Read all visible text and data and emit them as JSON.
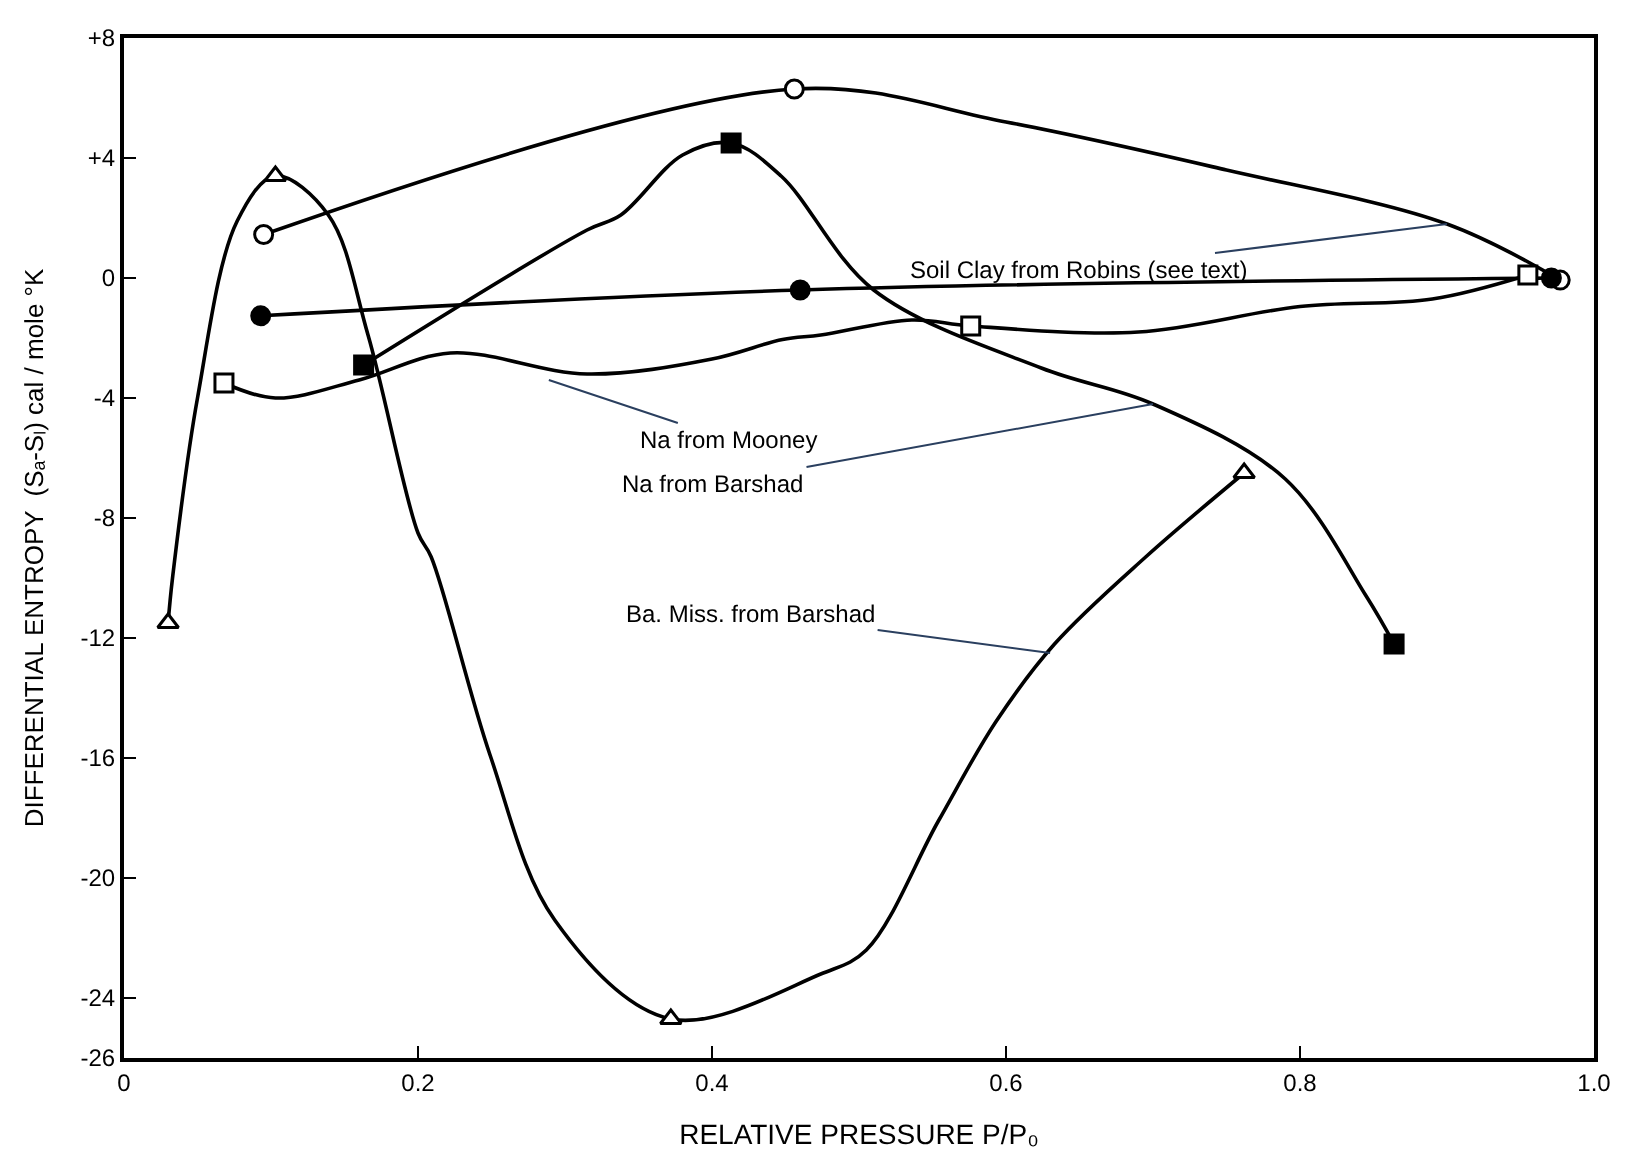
{
  "chart_data": {
    "type": "line",
    "xlabel": "RELATIVE PRESSURE P/P₀",
    "ylabel": "DIFFERENTIAL ENTROPY  (Sₐ-Sₗ) cal / mole °K",
    "xlim": [
      0,
      1.0
    ],
    "xticks": [
      0,
      0.2,
      0.4,
      0.6,
      0.8,
      {
        "value": 1.0,
        "label": "1.0"
      }
    ],
    "ylim": [
      -26,
      8
    ],
    "yticks": [
      {
        "value": 8,
        "label": "+8"
      },
      {
        "value": 4,
        "label": "+4"
      },
      0,
      -4,
      -8,
      -12,
      -16,
      -20,
      -24,
      -26
    ],
    "line_style": "solid",
    "marker": "none",
    "series": [
      {
        "color": "#000000",
        "x": [
          0.095,
          0.456,
          0.6,
          0.75,
          0.9,
          0.977
        ],
        "values": [
          1.45,
          6.3,
          5.2,
          3.6,
          1.8,
          -0.07
        ]
      },
      {
        "type": "scatter",
        "marker": "circle-open",
        "color": "#000000",
        "x": [
          0.095,
          0.456,
          0.977
        ],
        "values": [
          1.45,
          6.3,
          -0.07
        ]
      },
      {
        "color": "#000000",
        "x": [
          0.093,
          0.46,
          0.971
        ],
        "values": [
          -1.26,
          -0.4,
          0
        ]
      },
      {
        "type": "scatter",
        "marker": "circle",
        "color": "#000000",
        "x": [
          0.093,
          0.46,
          0.971
        ],
        "values": [
          -1.26,
          -0.4,
          0
        ]
      },
      {
        "color": "#000000",
        "x": [
          0.163,
          0.315,
          0.338,
          0.38,
          0.413,
          0.447,
          0.51,
          0.624,
          0.7,
          0.79,
          0.845,
          0.864
        ],
        "values": [
          -2.9,
          1.6,
          2.1,
          4.1,
          4.5,
          3.4,
          -0.4,
          -3.0,
          -4.2,
          -6.7,
          -10.6,
          -12.2
        ]
      },
      {
        "type": "scatter",
        "marker": "square",
        "color": "#000000",
        "x": [
          0.163,
          0.413,
          0.864
        ],
        "values": [
          -2.9,
          4.5,
          -12.2
        ]
      },
      {
        "color": "#000000",
        "x": [
          0.03,
          0.033,
          0.05,
          0.077,
          0.103,
          0.139,
          0.166,
          0.2,
          0.209,
          0.249,
          0.293,
          0.372,
          0.474,
          0.505,
          0.554,
          0.593,
          0.633,
          0.695,
          0.762
        ],
        "values": [
          -11.5,
          -10,
          -4,
          1.9,
          3.4,
          2.1,
          -1.9,
          -8.5,
          -9.3,
          -15.9,
          -21.4,
          -24.7,
          -23.2,
          -22.4,
          -18.1,
          -14.8,
          -12.2,
          -9.3,
          -6.5
        ]
      },
      {
        "type": "scatter",
        "marker": "triangle-up-open",
        "color": "#000000",
        "x": [
          0.03,
          0.103,
          0.372,
          0.762
        ],
        "values": [
          -11.5,
          3.4,
          -24.7,
          -6.5
        ]
      },
      {
        "color": "#000000",
        "x": [
          0.068,
          0.103,
          0.16,
          0.222,
          0.315,
          0.4,
          0.448,
          0.474,
          0.536,
          0.576,
          0.69,
          0.8,
          0.89,
          0.955
        ],
        "values": [
          -3.5,
          -4.0,
          -3.4,
          -2.5,
          -3.2,
          -2.7,
          -2.05,
          -1.9,
          -1.4,
          -1.6,
          -1.8,
          -0.95,
          -0.7,
          0.1
        ]
      },
      {
        "type": "scatter",
        "marker": "square-open",
        "color": "#000000",
        "x": [
          0.068,
          0.576,
          0.955
        ],
        "values": [
          -3.5,
          -1.6,
          0.1
        ]
      }
    ],
    "annotations": [
      {
        "text": "Soil Clay from Robins (see text)",
        "x": 0.9,
        "y": 1.8
      },
      {
        "text": "Na from Mooney",
        "x": 0.289,
        "y": -3.4
      },
      {
        "text": "Na from Barshad",
        "x": 0.7,
        "y": -4.2
      },
      {
        "text": "Ba. Miss. from Barshad",
        "x": 0.63,
        "y": -12.5
      }
    ]
  }
}
